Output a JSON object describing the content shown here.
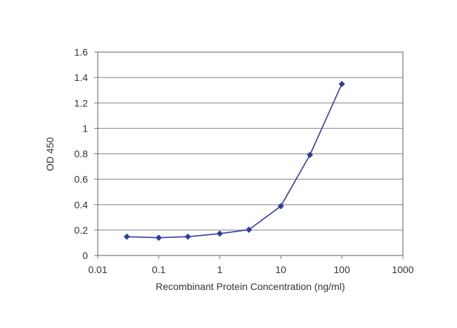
{
  "chart_data": {
    "type": "line",
    "title": "",
    "xlabel": "Recombinant Protein Concentration (ng/ml)",
    "ylabel": "OD 450",
    "x_scale": "log",
    "xlim": [
      0.01,
      1000
    ],
    "ylim": [
      0,
      1.6
    ],
    "x_ticks": [
      "0.01",
      "0.1",
      "1",
      "10",
      "100",
      "1000"
    ],
    "x_tick_values": [
      0.01,
      0.1,
      1,
      10,
      100,
      1000
    ],
    "y_ticks": [
      "0",
      "0.2",
      "0.4",
      "0.6",
      "0.8",
      "1",
      "1.2",
      "1.4",
      "1.6"
    ],
    "y_tick_values": [
      0,
      0.2,
      0.4,
      0.6,
      0.8,
      1,
      1.2,
      1.4,
      1.6
    ],
    "grid": "horizontal",
    "series": [
      {
        "x": [
          0.03,
          0.1,
          0.3,
          1,
          3,
          10,
          30,
          100
        ],
        "y": [
          0.148,
          0.14,
          0.148,
          0.172,
          0.203,
          0.388,
          0.791,
          1.349
        ],
        "color": "#2f3c9e",
        "marker": "diamond"
      }
    ]
  }
}
